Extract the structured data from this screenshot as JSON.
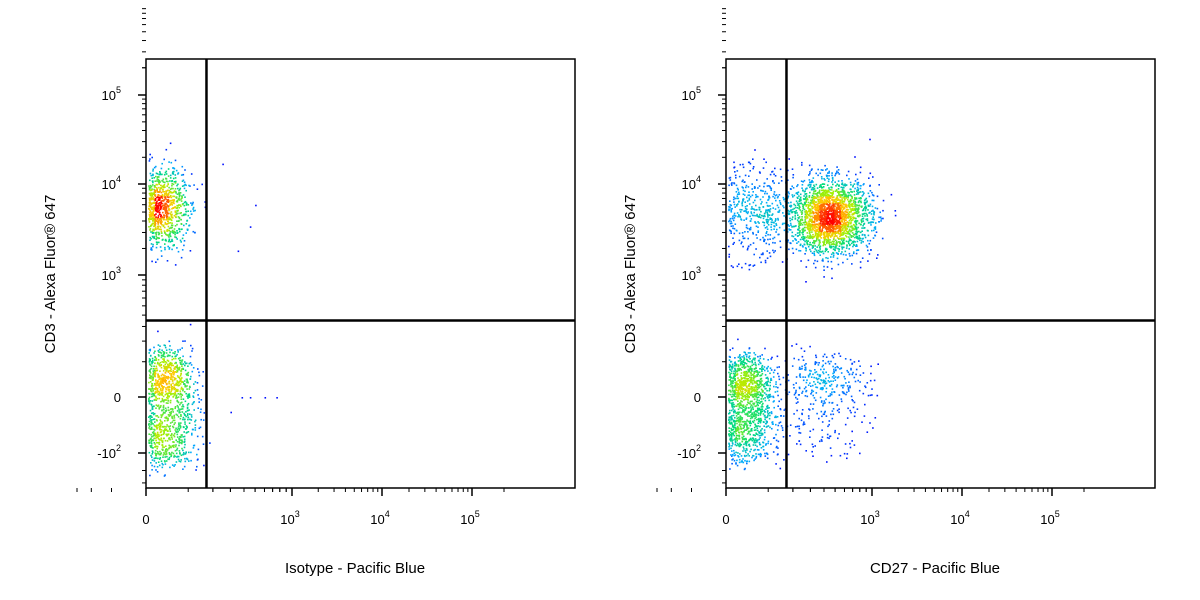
{
  "chart_data": [
    {
      "type": "scatter",
      "subtype": "flow-cytometry-density-dot-plot",
      "xlabel": "Isotype - Pacific Blue",
      "ylabel": "CD3 - Alexa Fluor® 647",
      "x_scale": "biexponential",
      "y_scale": "biexponential",
      "xlim": [
        -300,
        200000
      ],
      "ylim": [
        -350,
        250000
      ],
      "x_ticks": [
        {
          "value": 0,
          "base": "0",
          "exp": ""
        },
        {
          "value": 1000,
          "base": "10",
          "exp": "3"
        },
        {
          "value": 10000,
          "base": "10",
          "exp": "4"
        },
        {
          "value": 100000,
          "base": "10",
          "exp": "5"
        }
      ],
      "y_ticks": [
        {
          "value": -100,
          "base": "-10",
          "exp": "2"
        },
        {
          "value": 0,
          "base": "0",
          "exp": ""
        },
        {
          "value": 1000,
          "base": "10",
          "exp": "3"
        },
        {
          "value": 10000,
          "base": "10",
          "exp": "4"
        },
        {
          "value": 100000,
          "base": "10",
          "exp": "5"
        }
      ],
      "gates": {
        "x": 170,
        "y": 350
      },
      "populations": [
        {
          "center": [
            -10,
            5500
          ],
          "spread": [
            48,
            0.22
          ],
          "count": 2200
        },
        {
          "center": [
            0,
            0
          ],
          "spread": [
            55,
            75
          ],
          "count": 2400
        }
      ],
      "outliers": [
        [
          250,
          17000
        ],
        [
          500,
          6000
        ],
        [
          450,
          3500
        ],
        [
          350,
          1900
        ],
        [
          380,
          0
        ],
        [
          450,
          0
        ],
        [
          600,
          0
        ],
        [
          750,
          0
        ],
        [
          300,
          -20
        ]
      ],
      "grid": false,
      "legend": "none"
    },
    {
      "type": "scatter",
      "subtype": "flow-cytometry-density-dot-plot",
      "xlabel": "CD27 - Pacific Blue",
      "ylabel": "CD3 - Alexa Fluor® 647",
      "x_scale": "biexponential",
      "y_scale": "biexponential",
      "xlim": [
        -300,
        200000
      ],
      "ylim": [
        -350,
        250000
      ],
      "x_ticks": [
        {
          "value": 0,
          "base": "0",
          "exp": ""
        },
        {
          "value": 1000,
          "base": "10",
          "exp": "3"
        },
        {
          "value": 10000,
          "base": "10",
          "exp": "4"
        },
        {
          "value": 100000,
          "base": "10",
          "exp": "5"
        }
      ],
      "y_ticks": [
        {
          "value": -100,
          "base": "-10",
          "exp": "2"
        },
        {
          "value": 0,
          "base": "0",
          "exp": ""
        },
        {
          "value": 1000,
          "base": "10",
          "exp": "3"
        },
        {
          "value": 10000,
          "base": "10",
          "exp": "4"
        },
        {
          "value": 100000,
          "base": "10",
          "exp": "5"
        }
      ],
      "gates": {
        "x": 170,
        "y": 350
      },
      "populations": [
        {
          "center": [
            -40,
            5000
          ],
          "spread": [
            120,
            0.25
          ],
          "count": 1300
        },
        {
          "center": [
            450,
            4500
          ],
          "spread": [
            0.17,
            0.2
          ],
          "count": 2200
        },
        {
          "center": [
            0,
            0
          ],
          "spread": [
            55,
            60
          ],
          "count": 2700
        },
        {
          "center": [
            380,
            20
          ],
          "spread": [
            0.2,
            55
          ],
          "count": 380
        }
      ],
      "outliers": [],
      "grid": false,
      "legend": "none"
    }
  ]
}
